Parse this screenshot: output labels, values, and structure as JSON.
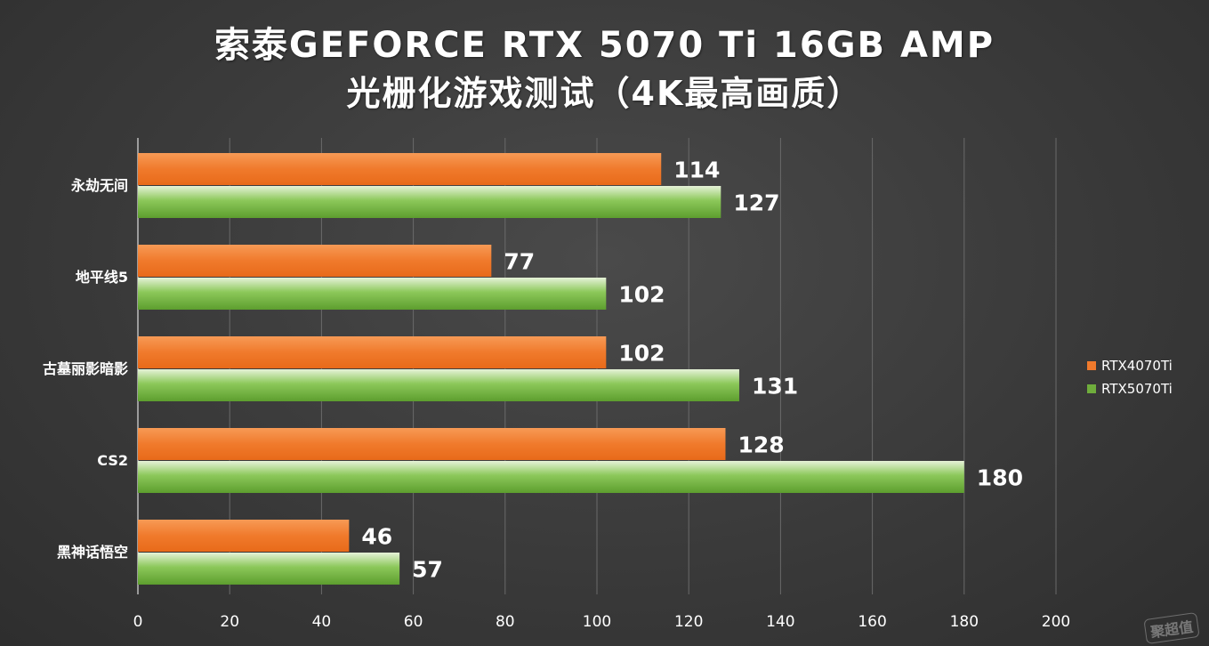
{
  "chart_data": {
    "type": "bar",
    "orientation": "horizontal",
    "title": "索泰GEFORCE RTX 5070 Ti 16GB AMP",
    "subtitle": "光栅化游戏测试（4K最高画质）",
    "categories": [
      "永劫无间",
      "地平线5",
      "古墓丽影暗影",
      "CS2",
      "黑神话悟空"
    ],
    "series": [
      {
        "name": "RTX4070Ti",
        "color": "#f07a2c",
        "values": [
          114,
          77,
          102,
          128,
          46
        ]
      },
      {
        "name": "RTX5070Ti",
        "color": "#6fad3c",
        "values": [
          127,
          102,
          131,
          180,
          57
        ]
      }
    ],
    "xlim": [
      0,
      200
    ],
    "xticks": [
      0,
      20,
      40,
      60,
      80,
      100,
      120,
      140,
      160,
      180,
      200
    ],
    "grid": true,
    "legend_position": "right"
  },
  "watermark": "聚超值"
}
